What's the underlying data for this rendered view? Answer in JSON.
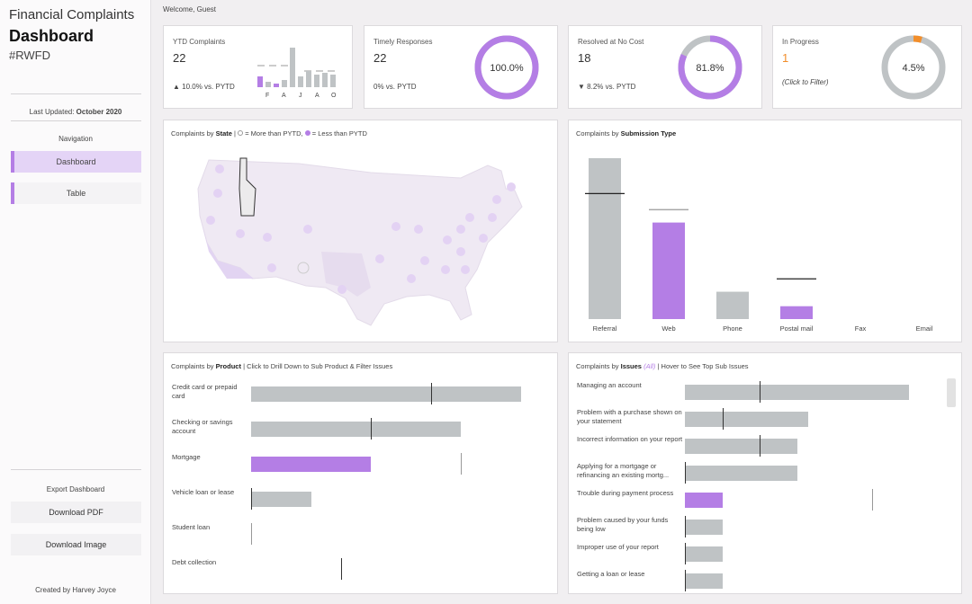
{
  "sidebar": {
    "title_line1": "Financial Complaints",
    "title_line2": "Dashboard",
    "title_line3": "#RWFD",
    "last_updated_label": "Last Updated:",
    "last_updated_value": "October 2020",
    "nav_heading": "Navigation",
    "nav_items": [
      {
        "label": "Dashboard"
      },
      {
        "label": "Table"
      }
    ],
    "export_heading": "Export Dashboard",
    "download_pdf": "Download PDF",
    "download_image": "Download Image",
    "created_by": "Created by Harvey Joyce"
  },
  "header": {
    "welcome": "Welcome, Guest"
  },
  "accent_purple": "#b47ee5",
  "neutral_gray": "#bfc3c5",
  "kpis": {
    "ytd": {
      "label": "YTD Complaints",
      "value": "22",
      "change": "▲ 10.0% vs. PYTD",
      "spark_labels": [
        "F",
        "A",
        "J",
        "A",
        "O"
      ]
    },
    "timely": {
      "label": "Timely Responses",
      "value": "22",
      "change": "0% vs. PYTD",
      "percent_text": "100.0%",
      "fraction": 1.0
    },
    "resolved": {
      "label": "Resolved at No Cost",
      "value": "18",
      "change": "▼ 8.2% vs. PYTD",
      "percent_text": "81.8%",
      "fraction": 0.818
    },
    "progress": {
      "label": "In Progress",
      "value": "1",
      "note": "(Click to Filter)",
      "percent_text": "4.5%",
      "fraction": 0.045,
      "value_color": "#f28e2b"
    }
  },
  "map_card": {
    "title_prefix": "Complaints by",
    "title_bold": "State",
    "legend_more": "= More than PYTD,",
    "legend_less": "= Less than PYTD"
  },
  "submission_card": {
    "title_prefix": "Complaints by",
    "title_bold": "Submission Type",
    "chart_data": {
      "type": "bar",
      "categories": [
        "Referral",
        "Web",
        "Phone",
        "Postal mail",
        "Fax",
        "Email"
      ],
      "values": [
        10,
        6,
        1.7,
        0.8,
        0,
        0
      ],
      "reference_values": [
        7.8,
        6.8,
        null,
        2.5,
        null,
        null
      ]
    }
  },
  "product_card": {
    "title_prefix": "Complaints by",
    "title_bold": "Product",
    "title_suffix": "| Click to Drill Down to Sub Product & Filter Issues",
    "chart_data": {
      "type": "bar",
      "orientation": "horizontal",
      "categories": [
        "Credit card or prepaid card",
        "Checking or savings account",
        "Mortgage",
        "Vehicle loan or lease",
        "Student loan",
        "Debt collection"
      ],
      "values": [
        9,
        7,
        4,
        2,
        0,
        0
      ],
      "reference_values": [
        6,
        4,
        7,
        0,
        0,
        3
      ]
    }
  },
  "issues_card": {
    "title_prefix": "Complaints by",
    "title_bold": "Issues",
    "title_all": "(All)",
    "title_suffix": "| Hover to See Top Sub Issues",
    "chart_data": {
      "type": "bar",
      "orientation": "horizontal",
      "categories": [
        "Managing an account",
        "Problem with a purchase shown on your statement",
        "Incorrect information on your report",
        "Applying for a mortgage or refinancing an existing mortg...",
        "Trouble during payment process",
        "Problem caused by your funds being low",
        "Improper use of your report",
        "Getting a loan or lease"
      ],
      "values": [
        6,
        3.3,
        3,
        3,
        1,
        1,
        1,
        1
      ],
      "reference_values": [
        2,
        1,
        2,
        0,
        5,
        0,
        0,
        0
      ]
    }
  }
}
